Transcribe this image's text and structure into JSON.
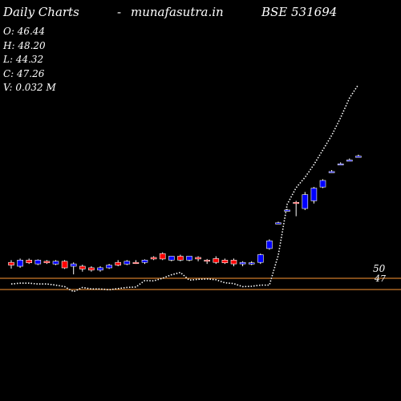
{
  "header": {
    "left": "Daily Charts",
    "dash": "-",
    "site": "munafasutra.in",
    "symbol": "BSE 531694"
  },
  "ohlcv": {
    "open": "O: 46.44",
    "high": "H: 48.20",
    "low": "L: 44.32",
    "close": "C: 47.26",
    "volume": "V: 0.032  M"
  },
  "levels": {
    "upper_label": "50",
    "lower_label": "47",
    "upper_value": 50,
    "lower_value": 47,
    "color": "#ff9933"
  },
  "colors": {
    "background": "#000000",
    "up_candle": "#0000ff",
    "down_candle": "#ff0000",
    "wick": "#ffffff",
    "trend_line": "#ffffff",
    "level_line": "#ff9933"
  },
  "chart_data": {
    "type": "candlestick",
    "price_range": [
      0,
      100
    ],
    "candles": [
      {
        "o": 36.0,
        "h": 36.6,
        "l": 34.4,
        "c": 35.3
      },
      {
        "o": 35.0,
        "h": 37.0,
        "l": 34.6,
        "c": 36.6
      },
      {
        "o": 36.6,
        "h": 37.0,
        "l": 35.6,
        "c": 35.9
      },
      {
        "o": 35.6,
        "h": 36.8,
        "l": 35.3,
        "c": 36.6
      },
      {
        "o": 36.3,
        "h": 36.6,
        "l": 35.6,
        "c": 35.9
      },
      {
        "o": 35.6,
        "h": 36.6,
        "l": 35.3,
        "c": 36.3
      },
      {
        "o": 36.3,
        "h": 36.6,
        "l": 34.3,
        "c": 34.6
      },
      {
        "o": 35.0,
        "h": 36.0,
        "l": 32.9,
        "c": 35.6
      },
      {
        "o": 35.0,
        "h": 35.4,
        "l": 33.6,
        "c": 34.3
      },
      {
        "o": 34.6,
        "h": 35.0,
        "l": 33.6,
        "c": 34.0
      },
      {
        "o": 34.0,
        "h": 35.0,
        "l": 33.6,
        "c": 34.6
      },
      {
        "o": 34.6,
        "h": 35.6,
        "l": 34.3,
        "c": 35.3
      },
      {
        "o": 36.0,
        "h": 36.6,
        "l": 35.0,
        "c": 35.3
      },
      {
        "o": 35.6,
        "h": 36.6,
        "l": 35.3,
        "c": 36.3
      },
      {
        "o": 36.0,
        "h": 36.6,
        "l": 35.6,
        "c": 35.9
      },
      {
        "o": 36.0,
        "h": 36.8,
        "l": 35.6,
        "c": 36.6
      },
      {
        "o": 37.3,
        "h": 37.6,
        "l": 36.6,
        "c": 36.9
      },
      {
        "o": 38.3,
        "h": 38.6,
        "l": 36.6,
        "c": 36.9
      },
      {
        "o": 36.6,
        "h": 37.6,
        "l": 36.3,
        "c": 37.6
      },
      {
        "o": 37.6,
        "h": 38.0,
        "l": 36.3,
        "c": 36.6
      },
      {
        "o": 36.6,
        "h": 37.6,
        "l": 36.3,
        "c": 37.6
      },
      {
        "o": 37.3,
        "h": 37.6,
        "l": 36.3,
        "c": 36.9
      },
      {
        "o": 36.6,
        "h": 36.9,
        "l": 35.6,
        "c": 36.3
      },
      {
        "o": 37.0,
        "h": 37.6,
        "l": 35.6,
        "c": 36.0
      },
      {
        "o": 36.6,
        "h": 37.0,
        "l": 35.6,
        "c": 35.9
      },
      {
        "o": 36.6,
        "h": 37.0,
        "l": 35.0,
        "c": 35.6
      },
      {
        "o": 35.6,
        "h": 36.3,
        "l": 35.0,
        "c": 36.0
      },
      {
        "o": 35.6,
        "h": 36.3,
        "l": 35.3,
        "c": 35.9
      },
      {
        "o": 36.0,
        "h": 38.3,
        "l": 35.6,
        "c": 38.0
      },
      {
        "o": 39.6,
        "h": 42.0,
        "l": 39.3,
        "c": 41.6
      },
      {
        "o": 46.3,
        "h": 46.6,
        "l": 46.0,
        "c": 46.3
      },
      {
        "o": 49.6,
        "h": 49.9,
        "l": 49.3,
        "c": 49.6
      },
      {
        "o": 51.6,
        "h": 52.0,
        "l": 48.0,
        "c": 51.3
      },
      {
        "o": 50.0,
        "h": 54.3,
        "l": 49.6,
        "c": 53.6
      },
      {
        "o": 52.0,
        "h": 55.6,
        "l": 51.3,
        "c": 55.3
      },
      {
        "o": 55.6,
        "h": 57.6,
        "l": 55.3,
        "c": 57.3
      },
      {
        "o": 59.6,
        "h": 60.0,
        "l": 59.3,
        "c": 59.6
      },
      {
        "o": 61.6,
        "h": 62.0,
        "l": 61.3,
        "c": 61.6
      },
      {
        "o": 62.6,
        "h": 63.0,
        "l": 62.3,
        "c": 62.6
      },
      {
        "o": 63.6,
        "h": 64.0,
        "l": 63.3,
        "c": 63.6
      }
    ],
    "trend_line": [
      30.4,
      30.6,
      30.6,
      30.4,
      30.4,
      30.1,
      29.7,
      28.4,
      29.5,
      29.1,
      29.1,
      28.9,
      29.2,
      29.5,
      29.6,
      31.3,
      31.2,
      31.9,
      32.8,
      33.4,
      31.4,
      31.6,
      31.7,
      31.5,
      30.7,
      30.5,
      29.7,
      29.8,
      30.1,
      30.1,
      37.9,
      51.1,
      55.4,
      58.1,
      61.4,
      65.2,
      69.0,
      73.6,
      78.7,
      82.2
    ]
  }
}
